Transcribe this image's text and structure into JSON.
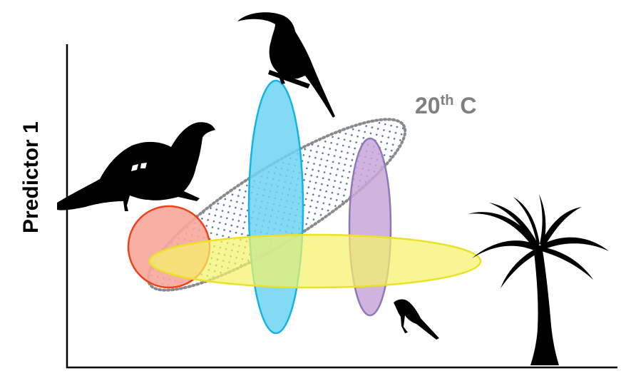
{
  "labels": {
    "y_axis": "Predictor 1",
    "era_number": "20",
    "era_suffix": "th",
    "era_unit": "C"
  },
  "colors": {
    "axis": "#000000",
    "red_niche_fill": "#f7a79a",
    "red_niche_stroke": "#f0421a",
    "blue_niche_fill": "#6dd3f2",
    "blue_niche_stroke": "#14b4e6",
    "purple_niche_fill": "#c8a6d9",
    "purple_niche_stroke": "#8c7ab8",
    "yellow_niche_fill": "#f4f26a",
    "yellow_niche_stroke": "#e9e227",
    "historical_outline": "#8a8a8a",
    "historical_dots": "#4a6fb0",
    "era_label": "#808080",
    "silhouettes": "#000000"
  },
  "icons": [
    "curassow-silhouette",
    "toucan-silhouette",
    "small-bird-silhouette",
    "palm-tree-silhouette"
  ]
}
